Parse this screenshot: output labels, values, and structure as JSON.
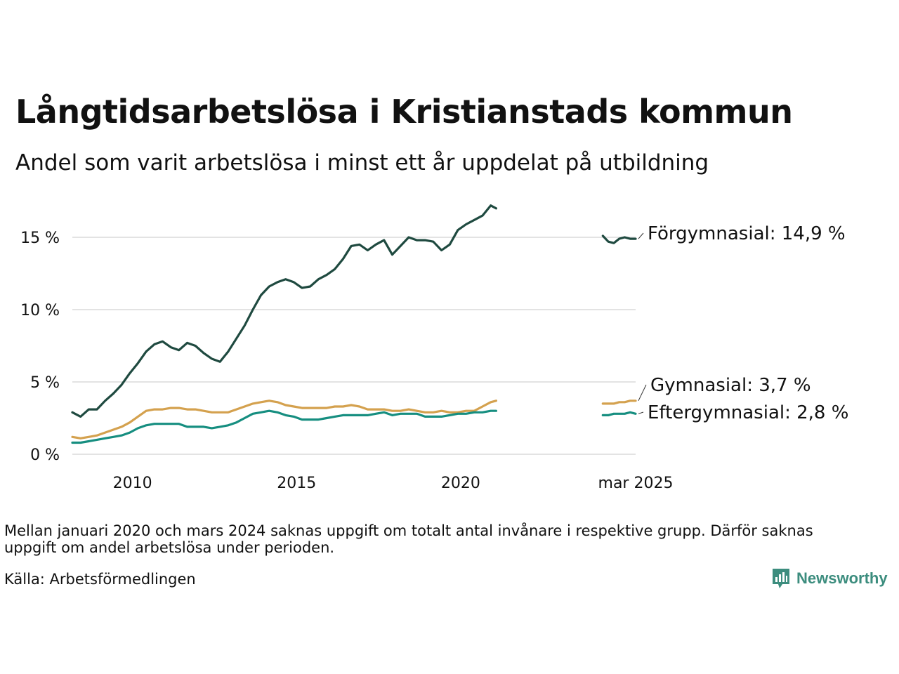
{
  "header": {
    "title": "Långtidsarbetslösa i Kristianstads kommun",
    "subtitle": "Andel som varit arbetslösa i minst ett år uppdelat på utbildning"
  },
  "footer": {
    "note": "Mellan januari 2020 och mars 2024 saknas uppgift om totalt antal invånare i respektive grupp. Därför saknas uppgift om andel arbetslösa under perioden.",
    "source": "Källa: Arbetsförmedlingen",
    "brand": "Newsworthy"
  },
  "colors": {
    "forgymnasial": "#1f4a40",
    "gymnasial": "#d4a14e",
    "eftergymnasial": "#168e80",
    "grid": "#e3e3e3",
    "brand": "#3c8d7e"
  },
  "chart_data": {
    "type": "line",
    "title": "Långtidsarbetslösa i Kristianstads kommun",
    "subtitle": "Andel som varit arbetslösa i minst ett år uppdelat på utbildning",
    "xlabel": "",
    "ylabel": "",
    "x_ticks": [
      "2010",
      "2015",
      "2020",
      "mar 2025"
    ],
    "y_ticks": [
      "0 %",
      "5 %",
      "10 %",
      "15 %"
    ],
    "y_tick_values": [
      0,
      5,
      10,
      15
    ],
    "ylim": [
      0,
      17.5
    ],
    "xlim": [
      "2008-01",
      "2025-03"
    ],
    "grid": true,
    "legend": "direct labels at line ends (right)",
    "series": [
      {
        "name": "Förgymnasial",
        "end_label": "Förgymnasial: 14,9 %",
        "color": "#1f4a40",
        "segments": [
          [
            [
              "2008-01",
              2.9
            ],
            [
              "2008-04",
              2.6
            ],
            [
              "2008-07",
              3.1
            ],
            [
              "2008-10",
              3.1
            ],
            [
              "2009-01",
              3.7
            ],
            [
              "2009-04",
              4.2
            ],
            [
              "2009-07",
              4.8
            ],
            [
              "2009-10",
              5.6
            ],
            [
              "2010-01",
              6.3
            ],
            [
              "2010-04",
              7.1
            ],
            [
              "2010-07",
              7.6
            ],
            [
              "2010-10",
              7.8
            ],
            [
              "2011-01",
              7.4
            ],
            [
              "2011-04",
              7.2
            ],
            [
              "2011-07",
              7.7
            ],
            [
              "2011-10",
              7.5
            ],
            [
              "2012-01",
              7.0
            ],
            [
              "2012-04",
              6.6
            ],
            [
              "2012-07",
              6.4
            ],
            [
              "2012-10",
              7.1
            ],
            [
              "2013-01",
              8.0
            ],
            [
              "2013-04",
              8.9
            ],
            [
              "2013-07",
              10.0
            ],
            [
              "2013-10",
              11.0
            ],
            [
              "2014-01",
              11.6
            ],
            [
              "2014-04",
              11.9
            ],
            [
              "2014-07",
              12.1
            ],
            [
              "2014-10",
              11.9
            ],
            [
              "2015-01",
              11.5
            ],
            [
              "2015-04",
              11.6
            ],
            [
              "2015-07",
              12.1
            ],
            [
              "2015-10",
              12.4
            ],
            [
              "2016-01",
              12.8
            ],
            [
              "2016-04",
              13.5
            ],
            [
              "2016-07",
              14.4
            ],
            [
              "2016-10",
              14.5
            ],
            [
              "2017-01",
              14.1
            ],
            [
              "2017-04",
              14.5
            ],
            [
              "2017-07",
              14.8
            ],
            [
              "2017-10",
              13.8
            ],
            [
              "2018-01",
              14.4
            ],
            [
              "2018-04",
              15.0
            ],
            [
              "2018-07",
              14.8
            ],
            [
              "2018-10",
              14.8
            ],
            [
              "2019-01",
              14.7
            ],
            [
              "2019-04",
              14.1
            ],
            [
              "2019-07",
              14.5
            ],
            [
              "2019-10",
              15.5
            ],
            [
              "2020-01",
              15.9
            ],
            [
              "2020-04",
              16.2
            ],
            [
              "2020-07",
              16.5
            ],
            [
              "2020-10",
              17.2
            ],
            [
              "2020-12",
              17.0
            ]
          ],
          [
            [
              "2024-03",
              15.1
            ],
            [
              "2024-05",
              14.7
            ],
            [
              "2024-07",
              14.6
            ],
            [
              "2024-09",
              14.9
            ],
            [
              "2024-11",
              15.0
            ],
            [
              "2025-01",
              14.9
            ],
            [
              "2025-03",
              14.9
            ]
          ]
        ]
      },
      {
        "name": "Gymnasial",
        "end_label": "Gymnasial:  3,7 %",
        "color": "#d4a14e",
        "segments": [
          [
            [
              "2008-01",
              1.2
            ],
            [
              "2008-04",
              1.1
            ],
            [
              "2008-07",
              1.2
            ],
            [
              "2008-10",
              1.3
            ],
            [
              "2009-01",
              1.5
            ],
            [
              "2009-04",
              1.7
            ],
            [
              "2009-07",
              1.9
            ],
            [
              "2009-10",
              2.2
            ],
            [
              "2010-01",
              2.6
            ],
            [
              "2010-04",
              3.0
            ],
            [
              "2010-07",
              3.1
            ],
            [
              "2010-10",
              3.1
            ],
            [
              "2011-01",
              3.2
            ],
            [
              "2011-04",
              3.2
            ],
            [
              "2011-07",
              3.1
            ],
            [
              "2011-10",
              3.1
            ],
            [
              "2012-01",
              3.0
            ],
            [
              "2012-04",
              2.9
            ],
            [
              "2012-07",
              2.9
            ],
            [
              "2012-10",
              2.9
            ],
            [
              "2013-01",
              3.1
            ],
            [
              "2013-04",
              3.3
            ],
            [
              "2013-07",
              3.5
            ],
            [
              "2013-10",
              3.6
            ],
            [
              "2014-01",
              3.7
            ],
            [
              "2014-04",
              3.6
            ],
            [
              "2014-07",
              3.4
            ],
            [
              "2014-10",
              3.3
            ],
            [
              "2015-01",
              3.2
            ],
            [
              "2015-04",
              3.2
            ],
            [
              "2015-07",
              3.2
            ],
            [
              "2015-10",
              3.2
            ],
            [
              "2016-01",
              3.3
            ],
            [
              "2016-04",
              3.3
            ],
            [
              "2016-07",
              3.4
            ],
            [
              "2016-10",
              3.3
            ],
            [
              "2017-01",
              3.1
            ],
            [
              "2017-04",
              3.1
            ],
            [
              "2017-07",
              3.1
            ],
            [
              "2017-10",
              3.0
            ],
            [
              "2018-01",
              3.0
            ],
            [
              "2018-04",
              3.1
            ],
            [
              "2018-07",
              3.0
            ],
            [
              "2018-10",
              2.9
            ],
            [
              "2019-01",
              2.9
            ],
            [
              "2019-04",
              3.0
            ],
            [
              "2019-07",
              2.9
            ],
            [
              "2019-10",
              2.9
            ],
            [
              "2020-01",
              3.0
            ],
            [
              "2020-04",
              3.0
            ],
            [
              "2020-07",
              3.3
            ],
            [
              "2020-10",
              3.6
            ],
            [
              "2020-12",
              3.7
            ]
          ],
          [
            [
              "2024-03",
              3.5
            ],
            [
              "2024-05",
              3.5
            ],
            [
              "2024-07",
              3.5
            ],
            [
              "2024-09",
              3.6
            ],
            [
              "2024-11",
              3.6
            ],
            [
              "2025-01",
              3.7
            ],
            [
              "2025-03",
              3.7
            ]
          ]
        ]
      },
      {
        "name": "Eftergymnasial",
        "end_label": "Eftergymnasial:  2,8 %",
        "color": "#168e80",
        "segments": [
          [
            [
              "2008-01",
              0.8
            ],
            [
              "2008-04",
              0.8
            ],
            [
              "2008-07",
              0.9
            ],
            [
              "2008-10",
              1.0
            ],
            [
              "2009-01",
              1.1
            ],
            [
              "2009-04",
              1.2
            ],
            [
              "2009-07",
              1.3
            ],
            [
              "2009-10",
              1.5
            ],
            [
              "2010-01",
              1.8
            ],
            [
              "2010-04",
              2.0
            ],
            [
              "2010-07",
              2.1
            ],
            [
              "2010-10",
              2.1
            ],
            [
              "2011-01",
              2.1
            ],
            [
              "2011-04",
              2.1
            ],
            [
              "2011-07",
              1.9
            ],
            [
              "2011-10",
              1.9
            ],
            [
              "2012-01",
              1.9
            ],
            [
              "2012-04",
              1.8
            ],
            [
              "2012-07",
              1.9
            ],
            [
              "2012-10",
              2.0
            ],
            [
              "2013-01",
              2.2
            ],
            [
              "2013-04",
              2.5
            ],
            [
              "2013-07",
              2.8
            ],
            [
              "2013-10",
              2.9
            ],
            [
              "2014-01",
              3.0
            ],
            [
              "2014-04",
              2.9
            ],
            [
              "2014-07",
              2.7
            ],
            [
              "2014-10",
              2.6
            ],
            [
              "2015-01",
              2.4
            ],
            [
              "2015-04",
              2.4
            ],
            [
              "2015-07",
              2.4
            ],
            [
              "2015-10",
              2.5
            ],
            [
              "2016-01",
              2.6
            ],
            [
              "2016-04",
              2.7
            ],
            [
              "2016-07",
              2.7
            ],
            [
              "2016-10",
              2.7
            ],
            [
              "2017-01",
              2.7
            ],
            [
              "2017-04",
              2.8
            ],
            [
              "2017-07",
              2.9
            ],
            [
              "2017-10",
              2.7
            ],
            [
              "2018-01",
              2.8
            ],
            [
              "2018-04",
              2.8
            ],
            [
              "2018-07",
              2.8
            ],
            [
              "2018-10",
              2.6
            ],
            [
              "2019-01",
              2.6
            ],
            [
              "2019-04",
              2.6
            ],
            [
              "2019-07",
              2.7
            ],
            [
              "2019-10",
              2.8
            ],
            [
              "2020-01",
              2.8
            ],
            [
              "2020-04",
              2.9
            ],
            [
              "2020-07",
              2.9
            ],
            [
              "2020-10",
              3.0
            ],
            [
              "2020-12",
              3.0
            ]
          ],
          [
            [
              "2024-03",
              2.7
            ],
            [
              "2024-05",
              2.7
            ],
            [
              "2024-07",
              2.8
            ],
            [
              "2024-09",
              2.8
            ],
            [
              "2024-11",
              2.8
            ],
            [
              "2025-01",
              2.9
            ],
            [
              "2025-03",
              2.8
            ]
          ]
        ]
      }
    ]
  }
}
